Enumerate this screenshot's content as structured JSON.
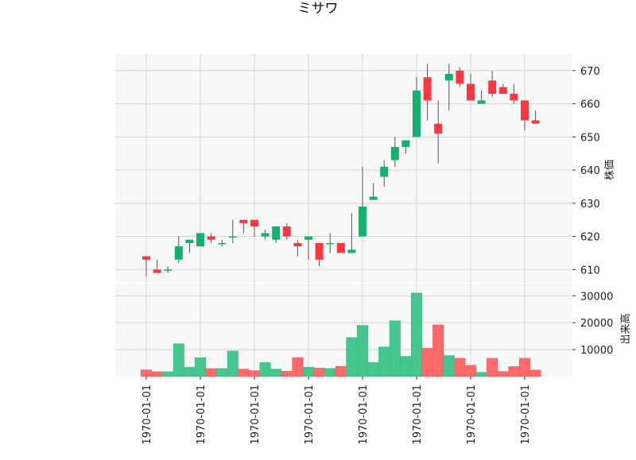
{
  "chart_data": {
    "type": "candlestick",
    "title": "ミサワ",
    "colors": {
      "up": "#12b26e",
      "down": "#f7383e",
      "up_volume": "#46c68f",
      "down_volume": "#fe6a6a",
      "panel_bg": "#f8f8f8",
      "grid": "#d3d3d3",
      "wick": "#555555"
    },
    "price_panel": {
      "ylabel": "株価",
      "ylim": [
        606,
        675
      ],
      "yticks": [
        610,
        620,
        630,
        640,
        650,
        660,
        670
      ],
      "ytick_labels": [
        "610",
        "620",
        "630",
        "640",
        "650",
        "660",
        "670"
      ]
    },
    "volume_panel": {
      "ylabel": "出来高",
      "ylim": [
        0,
        34500
      ],
      "yticks": [
        10000,
        20000,
        30000
      ],
      "ytick_labels": [
        "10000",
        "20000",
        "30000"
      ]
    },
    "x_axis": {
      "tick_positions": [
        0,
        5,
        10,
        15,
        20,
        25,
        30,
        35
      ],
      "tick_labels": [
        "1970-01-01",
        "1970-01-01",
        "1970-01-01",
        "1970-01-01",
        "1970-01-01",
        "1970-01-01",
        "1970-01-01",
        "1970-01-01"
      ]
    },
    "candles": [
      {
        "open": 614,
        "high": 614,
        "low": 608,
        "close": 613,
        "volume": 2500
      },
      {
        "open": 610,
        "high": 613,
        "low": 609,
        "close": 609,
        "volume": 1800
      },
      {
        "open": 610,
        "high": 611,
        "low": 609,
        "close": 610,
        "volume": 1800
      },
      {
        "open": 613,
        "high": 620,
        "low": 612,
        "close": 617,
        "volume": 12200
      },
      {
        "open": 618,
        "high": 619,
        "low": 615,
        "close": 619,
        "volume": 3500
      },
      {
        "open": 617,
        "high": 621,
        "low": 617,
        "close": 621,
        "volume": 7000
      },
      {
        "open": 620,
        "high": 621,
        "low": 618,
        "close": 619,
        "volume": 3000
      },
      {
        "open": 618,
        "high": 619,
        "low": 617,
        "close": 618,
        "volume": 3000
      },
      {
        "open": 620,
        "high": 625,
        "low": 618,
        "close": 620,
        "volume": 9500
      },
      {
        "open": 625,
        "high": 625,
        "low": 621,
        "close": 624,
        "volume": 2800
      },
      {
        "open": 625,
        "high": 625,
        "low": 620,
        "close": 623,
        "volume": 2200
      },
      {
        "open": 620,
        "high": 622,
        "low": 619,
        "close": 621,
        "volume": 5200
      },
      {
        "open": 619,
        "high": 623,
        "low": 618,
        "close": 623,
        "volume": 2800
      },
      {
        "open": 623,
        "high": 624,
        "low": 619,
        "close": 620,
        "volume": 2000
      },
      {
        "open": 618,
        "high": 619,
        "low": 614,
        "close": 617,
        "volume": 7000
      },
      {
        "open": 619,
        "high": 620,
        "low": 613,
        "close": 620,
        "volume": 3500
      },
      {
        "open": 618,
        "high": 618,
        "low": 611,
        "close": 613,
        "volume": 3200
      },
      {
        "open": 618,
        "high": 621,
        "low": 615,
        "close": 618,
        "volume": 3000
      },
      {
        "open": 618,
        "high": 618,
        "low": 615,
        "close": 615,
        "volume": 3800
      },
      {
        "open": 615,
        "high": 627,
        "low": 615,
        "close": 616,
        "volume": 14500
      },
      {
        "open": 620,
        "high": 641,
        "low": 620,
        "close": 629,
        "volume": 19000
      },
      {
        "open": 631,
        "high": 636,
        "low": 631,
        "close": 632,
        "volume": 5200
      },
      {
        "open": 638,
        "high": 643,
        "low": 635,
        "close": 641,
        "volume": 11000
      },
      {
        "open": 643,
        "high": 650,
        "low": 641,
        "close": 647,
        "volume": 20700
      },
      {
        "open": 647,
        "high": 649,
        "low": 645,
        "close": 649,
        "volume": 7500
      },
      {
        "open": 650,
        "high": 668,
        "low": 650,
        "close": 664,
        "volume": 31000
      },
      {
        "open": 668,
        "high": 672,
        "low": 655,
        "close": 661,
        "volume": 10500
      },
      {
        "open": 654,
        "high": 661,
        "low": 642,
        "close": 651,
        "volume": 19200
      },
      {
        "open": 667,
        "high": 672,
        "low": 658,
        "close": 669,
        "volume": 7800
      },
      {
        "open": 670,
        "high": 671,
        "low": 665,
        "close": 666,
        "volume": 6800
      },
      {
        "open": 666,
        "high": 669,
        "low": 661,
        "close": 661,
        "volume": 4200
      },
      {
        "open": 660,
        "high": 664,
        "low": 660,
        "close": 661,
        "volume": 1600
      },
      {
        "open": 667,
        "high": 670,
        "low": 662,
        "close": 663,
        "volume": 6800
      },
      {
        "open": 665,
        "high": 666,
        "low": 663,
        "close": 663,
        "volume": 1900
      },
      {
        "open": 663,
        "high": 666,
        "low": 660,
        "close": 661,
        "volume": 3700
      },
      {
        "open": 661,
        "high": 661,
        "low": 652,
        "close": 655,
        "volume": 6800
      },
      {
        "open": 655,
        "high": 658,
        "low": 654,
        "close": 654,
        "volume": 2400
      }
    ]
  }
}
